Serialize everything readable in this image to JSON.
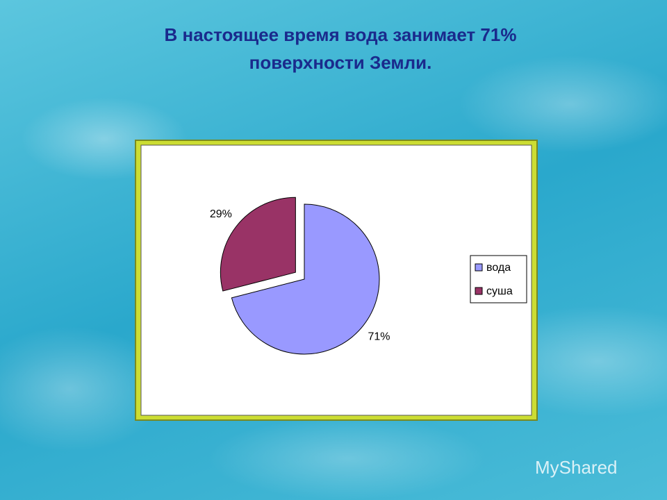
{
  "title": "В настоящее время  вода занимает 71% поверхности Земли.",
  "watermark": "MyShared",
  "chart_data": {
    "type": "pie",
    "categories": [
      "вода",
      "суша"
    ],
    "values": [
      71,
      29
    ],
    "value_labels": [
      "71%",
      "29%"
    ],
    "colors": [
      "#9999ff",
      "#993366"
    ]
  }
}
